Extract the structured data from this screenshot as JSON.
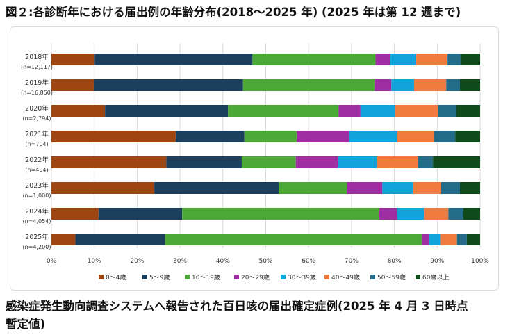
{
  "title": "図２:各診断年における届出例の年齢分布(2018～2025 年) (2025 年は第 12 週まで)",
  "caption": {
    "line1": "感染症発生動向調査システムへ報告された百日咳の届出確定症例(2025 年 4 月 3 日時点",
    "line2": "暫定値)"
  },
  "chart_data": {
    "type": "bar",
    "orientation": "horizontal",
    "stacked": "percent",
    "categories": [
      "2018年",
      "2019年",
      "2020年",
      "2021年",
      "2022年",
      "2023年",
      "2024年",
      "2025年"
    ],
    "category_counts": [
      "(n=12,117)",
      "(n=16,850)",
      "(n=2,794)",
      "(n=704)",
      "(n=494)",
      "(n=1,000)",
      "(n=4,054)",
      "(n=4,200)"
    ],
    "xlim": [
      0,
      100
    ],
    "xticks": [
      "0%",
      "10%",
      "20%",
      "30%",
      "40%",
      "50%",
      "60%",
      "70%",
      "80%",
      "90%",
      "100%"
    ],
    "grid": true,
    "legend_position": "bottom",
    "series": [
      {
        "name": "0～4歳",
        "color": "#9e4612",
        "values": [
          10.1,
          10.0,
          12.5,
          29.0,
          26.8,
          24.0,
          11.0,
          5.6
        ]
      },
      {
        "name": "5～9歳",
        "color": "#1d3f5e",
        "values": [
          36.8,
          34.7,
          28.7,
          16.0,
          17.6,
          29.0,
          19.5,
          20.9
        ]
      },
      {
        "name": "10～19歳",
        "color": "#4ca837",
        "values": [
          28.7,
          30.7,
          25.8,
          12.2,
          12.6,
          15.9,
          46.0,
          60.0
        ]
      },
      {
        "name": "20～29歳",
        "color": "#9e2ea2",
        "values": [
          3.5,
          3.9,
          5.1,
          12.3,
          9.8,
          8.3,
          4.2,
          1.6
        ]
      },
      {
        "name": "30～39歳",
        "color": "#11a3d9",
        "values": [
          6.0,
          5.3,
          8.0,
          11.2,
          9.1,
          7.2,
          6.2,
          2.6
        ]
      },
      {
        "name": "40～49歳",
        "color": "#ef7b3f",
        "values": [
          7.3,
          7.5,
          10.1,
          8.5,
          9.6,
          6.5,
          5.7,
          3.9
        ]
      },
      {
        "name": "50～59歳",
        "color": "#236d8a",
        "values": [
          3.1,
          3.2,
          4.2,
          5.0,
          3.5,
          4.4,
          3.5,
          2.3
        ]
      },
      {
        "name": "60歳以上",
        "color": "#0f4a1b",
        "values": [
          4.5,
          4.7,
          5.6,
          5.8,
          11.0,
          4.7,
          3.9,
          3.1
        ]
      }
    ]
  }
}
